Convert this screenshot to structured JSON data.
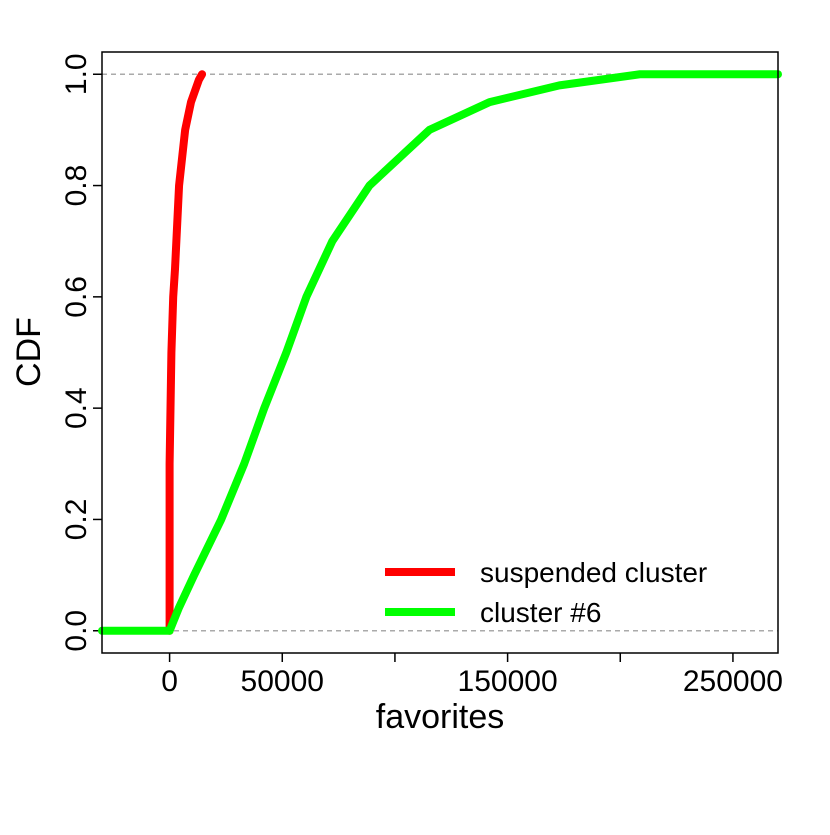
{
  "chart_data": {
    "type": "line",
    "x_label": "favorites",
    "y_label": "CDF",
    "xlim": [
      -30000,
      270000
    ],
    "ylim": [
      -0.04,
      1.04
    ],
    "xticks": [
      0,
      50000,
      {
        "value": 100000,
        "label": null
      },
      150000,
      {
        "value": 200000,
        "label": null
      },
      250000
    ],
    "yticks": [
      {
        "value": 0,
        "label": "0.0"
      },
      0.2,
      0.4,
      0.6,
      0.8,
      {
        "value": 1,
        "label": "1.0"
      }
    ],
    "ref_lines": [
      0,
      1
    ],
    "legend": "bottom-right",
    "series": [
      {
        "name": "suspended cluster",
        "color": "#ff0000",
        "x": [
          0,
          0,
          800,
          1600,
          2400,
          4200,
          6900,
          9500,
          13000,
          14400
        ],
        "values": [
          0,
          0.3,
          0.5,
          0.6,
          0.65,
          0.8,
          0.9,
          0.95,
          0.99,
          1.0
        ]
      },
      {
        "name": "cluster #6",
        "color": "#00ff00",
        "x": [
          -30000,
          0,
          4000,
          10900,
          22900,
          33100,
          42000,
          51800,
          60700,
          72200,
          88700,
          115300,
          142000,
          173000,
          208700,
          270000
        ],
        "values": [
          0,
          0,
          0.04,
          0.1,
          0.2,
          0.3,
          0.4,
          0.5,
          0.6,
          0.7,
          0.8,
          0.9,
          0.95,
          0.98,
          1.0,
          1.0
        ]
      }
    ]
  }
}
